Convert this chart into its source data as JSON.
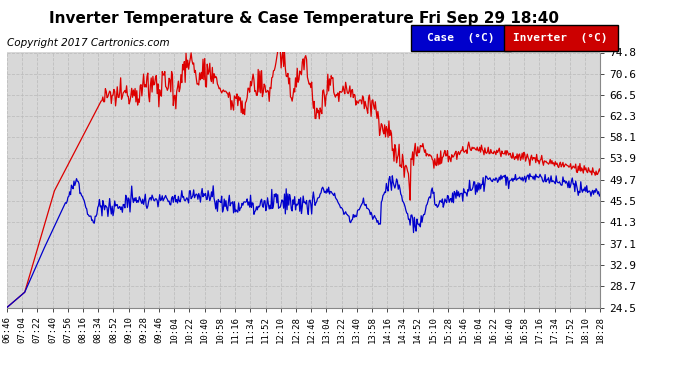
{
  "title": "Inverter Temperature & Case Temperature Fri Sep 29 18:40",
  "copyright": "Copyright 2017 Cartronics.com",
  "ylabel_right_ticks": [
    24.5,
    28.7,
    32.9,
    37.1,
    41.3,
    45.5,
    49.7,
    53.9,
    58.1,
    62.3,
    66.5,
    70.6,
    74.8
  ],
  "ylim": [
    24.5,
    74.8
  ],
  "background_color": "#ffffff",
  "plot_bg_color": "#d8d8d8",
  "grid_color": "#bbbbbb",
  "legend_case_bg": "#0000cc",
  "legend_inv_bg": "#cc0000",
  "legend_text_color": "#ffffff",
  "inverter_color": "#dd0000",
  "case_color": "#0000cc",
  "title_fontsize": 11,
  "copyright_fontsize": 7.5,
  "x_label_fontsize": 6.5,
  "y_label_fontsize": 8,
  "x_tick_labels": [
    "06:46",
    "07:04",
    "07:22",
    "07:40",
    "07:56",
    "08:16",
    "08:34",
    "08:52",
    "09:10",
    "09:28",
    "09:46",
    "10:04",
    "10:22",
    "10:40",
    "10:58",
    "11:16",
    "11:34",
    "11:52",
    "12:10",
    "12:28",
    "12:46",
    "13:04",
    "13:22",
    "13:40",
    "13:58",
    "14:16",
    "14:34",
    "14:52",
    "15:10",
    "15:28",
    "15:46",
    "16:04",
    "16:22",
    "16:40",
    "16:58",
    "17:16",
    "17:34",
    "17:52",
    "18:10",
    "18:28"
  ]
}
